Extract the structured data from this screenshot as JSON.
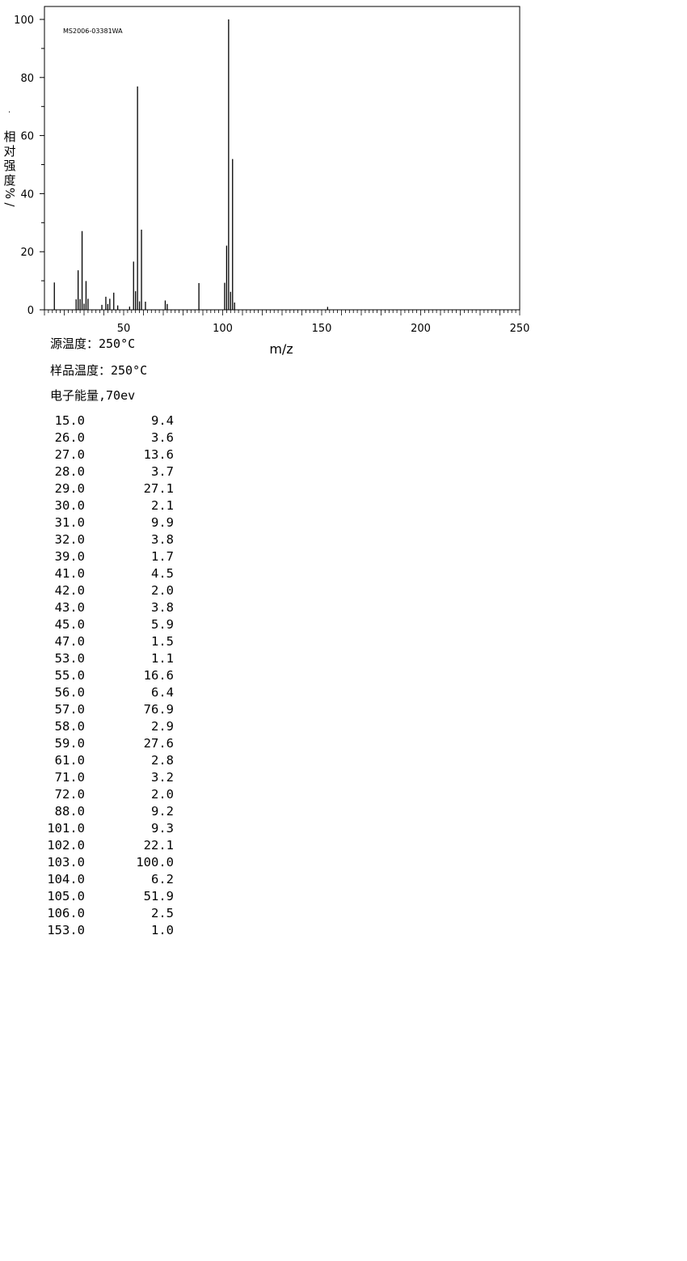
{
  "chart_data": {
    "type": "bar",
    "title": "MS2006-03381WA",
    "xlabel": "m/z",
    "ylabel": "相对强度%/",
    "xlim": [
      10,
      250
    ],
    "ylim": [
      0,
      100
    ],
    "xticks": [
      50,
      100,
      150,
      200,
      250
    ],
    "yticks": [
      0,
      20,
      40,
      60,
      80,
      100
    ],
    "grid": false,
    "x": [
      15,
      26,
      27,
      28,
      29,
      30,
      31,
      32,
      39,
      41,
      42,
      43,
      45,
      47,
      53,
      55,
      56,
      57,
      58,
      59,
      61,
      71,
      72,
      88,
      101,
      102,
      103,
      104,
      105,
      106,
      153
    ],
    "values": [
      9.4,
      3.6,
      13.6,
      3.7,
      27.1,
      2.1,
      9.9,
      3.8,
      1.7,
      4.5,
      2.0,
      3.8,
      5.9,
      1.5,
      1.1,
      16.6,
      6.4,
      76.9,
      2.9,
      27.6,
      2.8,
      3.2,
      2.0,
      9.2,
      9.3,
      22.1,
      100.0,
      6.2,
      51.9,
      2.5,
      1.0
    ]
  },
  "conditions": {
    "source_temp": "源温度：250°C",
    "sample_temp": "样品温度：250°C",
    "electron_energy": "电子能量,70ev"
  },
  "ylabel_dot": "·",
  "peaks": [
    [
      "15.0",
      "9.4"
    ],
    [
      "26.0",
      "3.6"
    ],
    [
      "27.0",
      "13.6"
    ],
    [
      "28.0",
      "3.7"
    ],
    [
      "29.0",
      "27.1"
    ],
    [
      "30.0",
      "2.1"
    ],
    [
      "31.0",
      "9.9"
    ],
    [
      "32.0",
      "3.8"
    ],
    [
      "39.0",
      "1.7"
    ],
    [
      "41.0",
      "4.5"
    ],
    [
      "42.0",
      "2.0"
    ],
    [
      "43.0",
      "3.8"
    ],
    [
      "45.0",
      "5.9"
    ],
    [
      "47.0",
      "1.5"
    ],
    [
      "53.0",
      "1.1"
    ],
    [
      "55.0",
      "16.6"
    ],
    [
      "56.0",
      "6.4"
    ],
    [
      "57.0",
      "76.9"
    ],
    [
      "58.0",
      "2.9"
    ],
    [
      "59.0",
      "27.6"
    ],
    [
      "61.0",
      "2.8"
    ],
    [
      "71.0",
      "3.2"
    ],
    [
      "72.0",
      "2.0"
    ],
    [
      "88.0",
      "9.2"
    ],
    [
      "101.0",
      "9.3"
    ],
    [
      "102.0",
      "22.1"
    ],
    [
      "103.0",
      "100.0"
    ],
    [
      "104.0",
      "6.2"
    ],
    [
      "105.0",
      "51.9"
    ],
    [
      "106.0",
      "2.5"
    ],
    [
      "153.0",
      "1.0"
    ]
  ]
}
